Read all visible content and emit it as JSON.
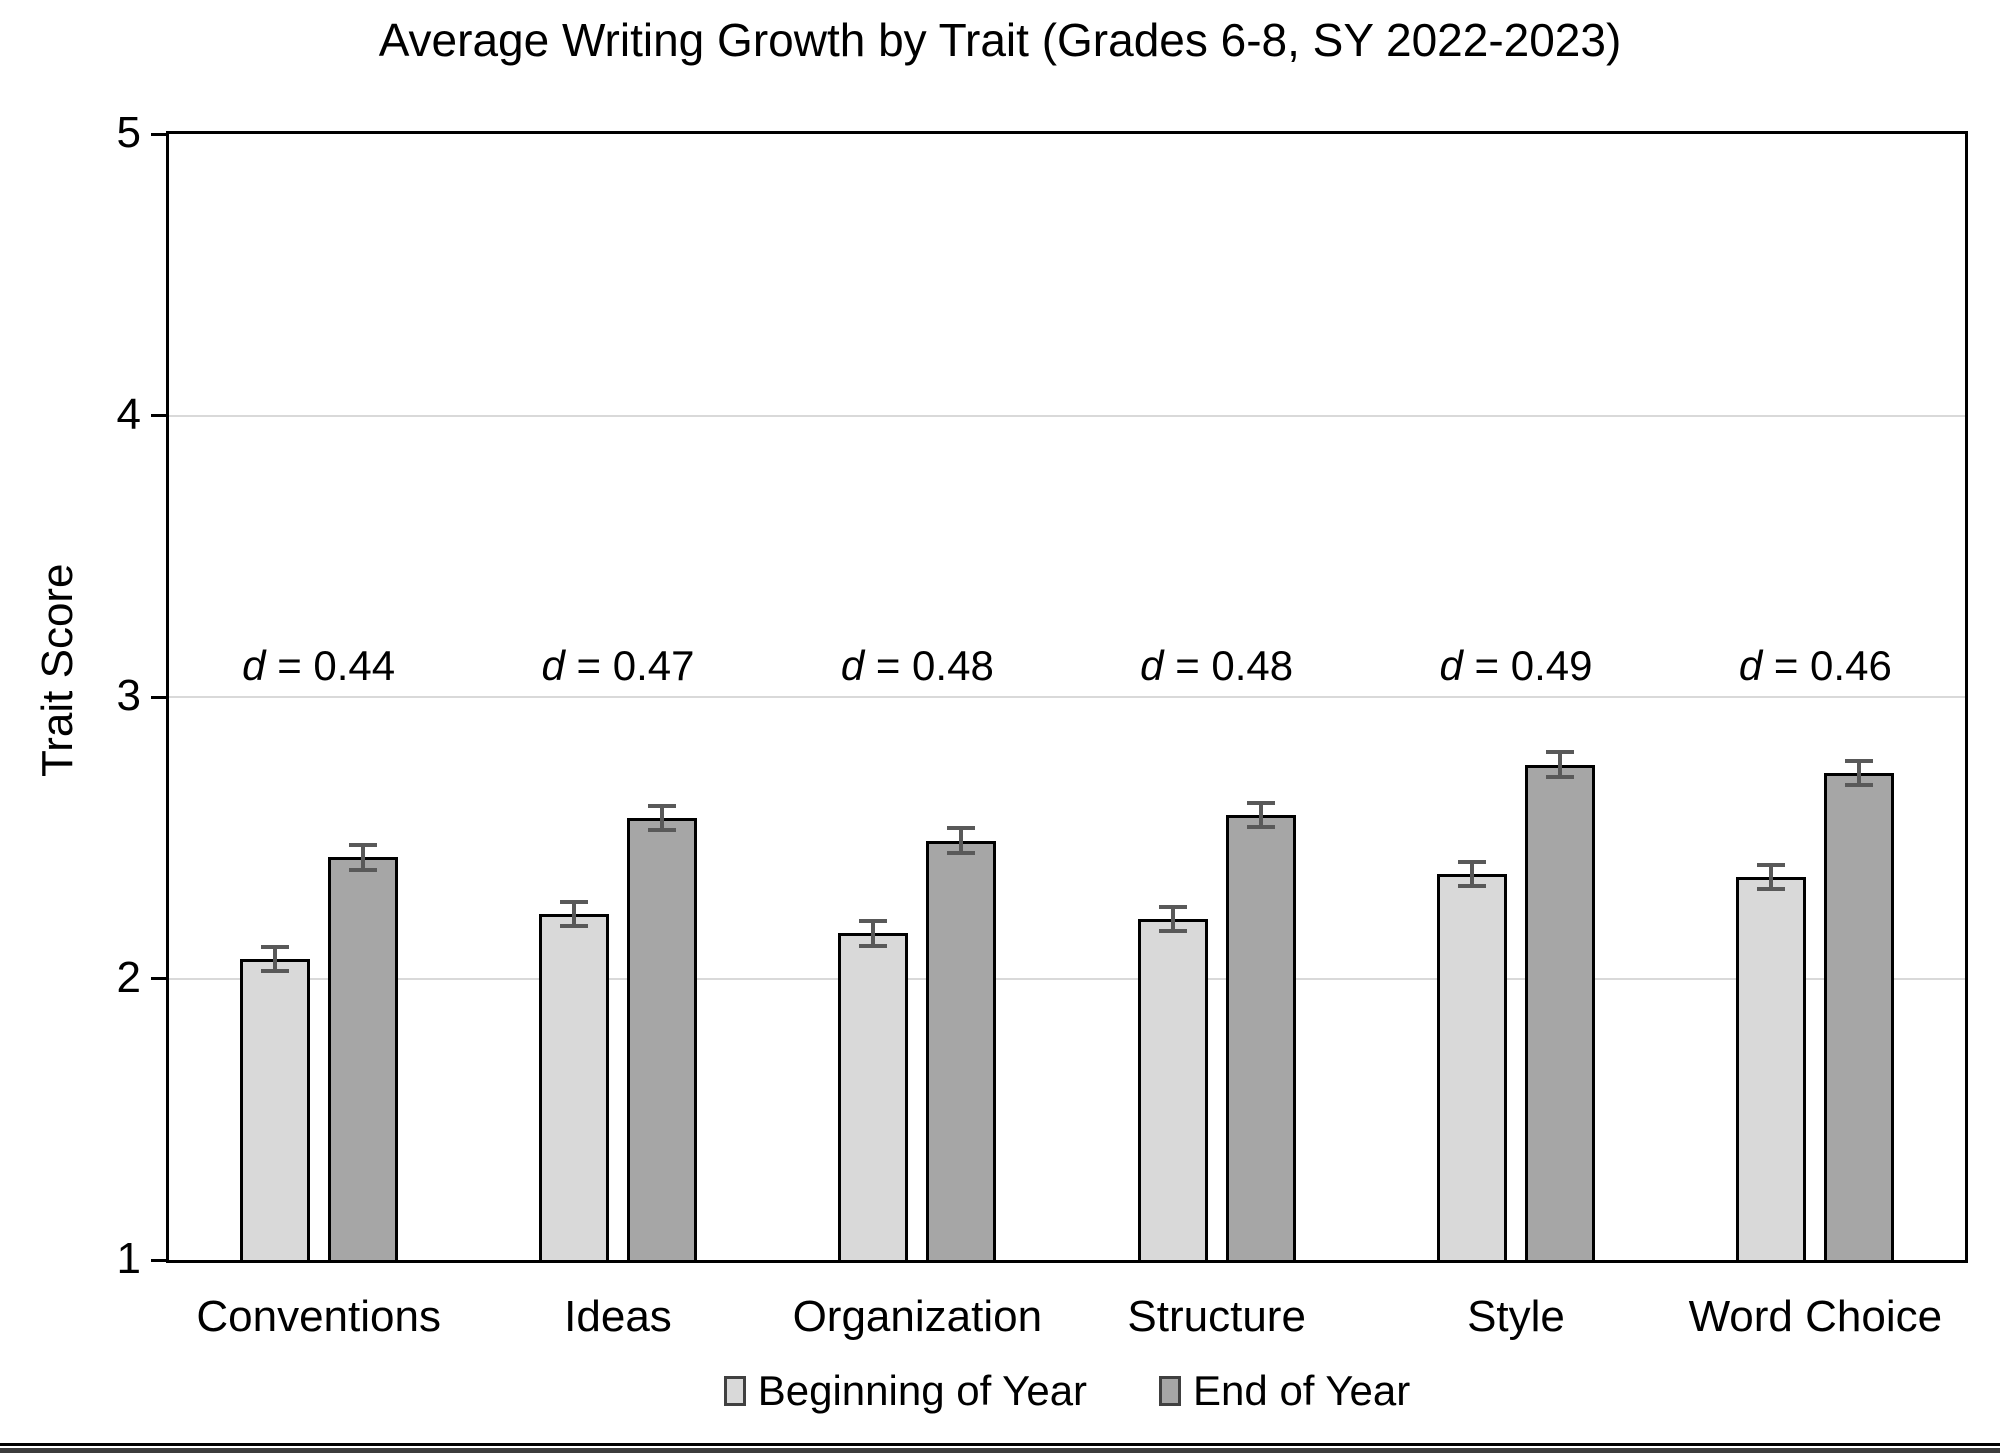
{
  "chart_data": {
    "type": "bar",
    "title": "Average Writing Growth by Trait (Grades 6-8, SY 2022-2023)",
    "xlabel": "",
    "ylabel": "Trait Score",
    "ylim": [
      1,
      5
    ],
    "yticks": [
      "1",
      "2",
      "3",
      "4",
      "5"
    ],
    "gridlines_at": [
      2,
      3,
      4
    ],
    "grid": true,
    "legend_position": "bottom",
    "categories": [
      "Conventions",
      "Ideas",
      "Organization",
      "Structure",
      "Style",
      "Word Choice"
    ],
    "series": [
      {
        "name": "Beginning of Year",
        "color": "#d9d9d9",
        "values": [
          2.07,
          2.23,
          2.16,
          2.21,
          2.37,
          2.36
        ],
        "errors": [
          0.05,
          0.05,
          0.05,
          0.05,
          0.05,
          0.05
        ]
      },
      {
        "name": "End of Year",
        "color": "#a6a6a6",
        "values": [
          2.43,
          2.57,
          2.49,
          2.58,
          2.76,
          2.73
        ],
        "errors": [
          0.05,
          0.05,
          0.05,
          0.05,
          0.05,
          0.05
        ]
      }
    ],
    "annotations": [
      "d = 0.44",
      "d = 0.47",
      "d = 0.48",
      "d = 0.48",
      "d = 0.49",
      "d = 0.46"
    ],
    "annotation_y": 3.11
  },
  "style": {
    "bar_border_color": "#000000",
    "error_bar_color": "#595959",
    "gridline_color": "#d9d9d9",
    "axis_frame_color": "#000000",
    "text_color": "#000000",
    "background_color": "#ffffff"
  }
}
